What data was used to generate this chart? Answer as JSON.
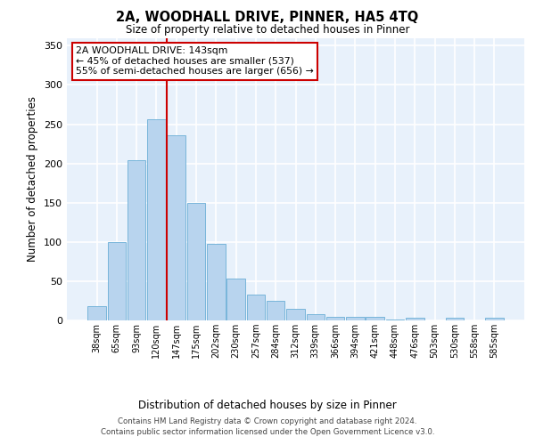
{
  "title_line1": "2A, WOODHALL DRIVE, PINNER, HA5 4TQ",
  "title_line2": "Size of property relative to detached houses in Pinner",
  "xlabel": "Distribution of detached houses by size in Pinner",
  "ylabel": "Number of detached properties",
  "bar_labels": [
    "38sqm",
    "65sqm",
    "93sqm",
    "120sqm",
    "147sqm",
    "175sqm",
    "202sqm",
    "230sqm",
    "257sqm",
    "284sqm",
    "312sqm",
    "339sqm",
    "366sqm",
    "394sqm",
    "421sqm",
    "448sqm",
    "476sqm",
    "503sqm",
    "530sqm",
    "558sqm",
    "585sqm"
  ],
  "bar_heights": [
    18,
    100,
    204,
    256,
    236,
    150,
    97,
    53,
    33,
    25,
    15,
    8,
    5,
    4,
    5,
    1,
    3,
    0,
    3,
    0,
    3
  ],
  "bar_color": "#b8d4ee",
  "bar_edge_color": "#6aaed6",
  "background_color": "#e8f1fb",
  "grid_color": "#ffffff",
  "vline_index": 4,
  "vline_color": "#cc0000",
  "annotation_text": "2A WOODHALL DRIVE: 143sqm\n← 45% of detached houses are smaller (537)\n55% of semi-detached houses are larger (656) →",
  "annotation_box_color": "#ffffff",
  "annotation_box_edge": "#cc0000",
  "ylim": [
    0,
    360
  ],
  "yticks": [
    0,
    50,
    100,
    150,
    200,
    250,
    300,
    350
  ],
  "footer_line1": "Contains HM Land Registry data © Crown copyright and database right 2024.",
  "footer_line2": "Contains public sector information licensed under the Open Government Licence v3.0."
}
